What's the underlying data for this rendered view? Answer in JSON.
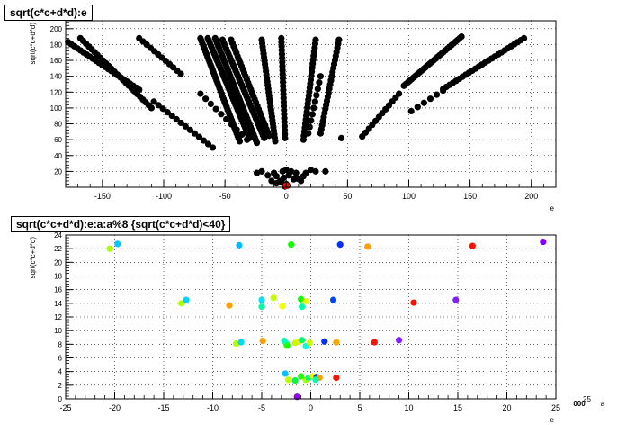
{
  "chart_data": [
    {
      "type": "scatter",
      "title": "sqrt(c*c+d*d):e",
      "xlabel": "e",
      "ylabel": "sqrt(c*c+d*d)",
      "xlim": [
        -180,
        220
      ],
      "ylim": [
        0,
        210
      ],
      "xticks": [
        -150,
        -100,
        -50,
        0,
        50,
        100,
        150,
        200
      ],
      "yticks": [
        20,
        40,
        60,
        80,
        100,
        120,
        140,
        160,
        180,
        200
      ],
      "grid": true,
      "rays": [
        {
          "x0": -178,
          "y0": 183,
          "x1": -120,
          "y1": 123,
          "n": 24
        },
        {
          "x0": -168,
          "y0": 188,
          "x1": -110,
          "y1": 100,
          "n": 26
        },
        {
          "x0": -120,
          "y0": 188,
          "x1": -86,
          "y1": 143,
          "n": 12
        },
        {
          "x0": -108,
          "y0": 108,
          "x1": -60,
          "y1": 50,
          "n": 14
        },
        {
          "x0": -70,
          "y0": 188,
          "x1": -38,
          "y1": 58,
          "n": 40
        },
        {
          "x0": -64,
          "y0": 188,
          "x1": -30,
          "y1": 62,
          "n": 40
        },
        {
          "x0": -58,
          "y0": 188,
          "x1": -24,
          "y1": 56,
          "n": 40
        },
        {
          "x0": -52,
          "y0": 186,
          "x1": -18,
          "y1": 62,
          "n": 36
        },
        {
          "x0": -45,
          "y0": 186,
          "x1": -14,
          "y1": 65,
          "n": 30
        },
        {
          "x0": -20,
          "y0": 186,
          "x1": -9,
          "y1": 58,
          "n": 30
        },
        {
          "x0": -70,
          "y0": 118,
          "x1": -32,
          "y1": 60,
          "n": 10
        },
        {
          "x0": -4,
          "y0": 188,
          "x1": -1,
          "y1": 62,
          "n": 26
        },
        {
          "x0": 24,
          "y0": 186,
          "x1": 14,
          "y1": 60,
          "n": 26
        },
        {
          "x0": 43,
          "y0": 186,
          "x1": 28,
          "y1": 68,
          "n": 24
        },
        {
          "x0": 28,
          "y0": 140,
          "x1": 18,
          "y1": 68,
          "n": 10
        },
        {
          "x0": 143,
          "y0": 190,
          "x1": 96,
          "y1": 128,
          "n": 30
        },
        {
          "x0": 194,
          "y0": 188,
          "x1": 128,
          "y1": 124,
          "n": 26
        },
        {
          "x0": 92,
          "y0": 118,
          "x1": 62,
          "y1": 64,
          "n": 12
        },
        {
          "x0": 128,
          "y0": 122,
          "x1": 102,
          "y1": 96,
          "n": 6
        }
      ],
      "extra_points": [
        [
          45,
          62
        ],
        [
          -8,
          5
        ],
        [
          -5,
          8
        ],
        [
          -2,
          12
        ],
        [
          2,
          15
        ],
        [
          6,
          10
        ],
        [
          -12,
          8
        ],
        [
          12,
          8
        ],
        [
          -20,
          20
        ],
        [
          20,
          22
        ],
        [
          -3,
          20
        ],
        [
          4,
          20
        ],
        [
          8,
          18
        ],
        [
          -15,
          15
        ],
        [
          14,
          14
        ],
        [
          0,
          4
        ],
        [
          1,
          2
        ],
        [
          -1,
          1
        ],
        [
          24,
          20
        ],
        [
          -24,
          18
        ],
        [
          32,
          20
        ],
        [
          -8,
          14
        ],
        [
          9,
          11
        ],
        [
          -10,
          18
        ],
        [
          0,
          22
        ],
        [
          16,
          18
        ],
        [
          -4,
          6
        ]
      ],
      "highlight_point": {
        "x": 0,
        "y": 2,
        "color": "#ff0000"
      }
    },
    {
      "type": "scatter",
      "title": "sqrt(c*c+d*d):e:a:a%8 {sqrt(c*c+d*d)<40}",
      "xlabel": "e",
      "ylabel": "sqrt(c*c+d*d)",
      "zlabel": "a",
      "xlim": [
        -25,
        25
      ],
      "ylim": [
        0,
        24
      ],
      "xticks": [
        -25,
        -20,
        -15,
        -10,
        -5,
        0,
        5,
        10,
        15,
        20,
        25
      ],
      "yticks": [
        0,
        2,
        4,
        6,
        8,
        10,
        12,
        14,
        16,
        18,
        20,
        22,
        24
      ],
      "grid": true,
      "z_axis_labels": [
        "000",
        "25"
      ],
      "points": [
        [
          -20.5,
          22.0,
          "#a8ff00"
        ],
        [
          -19.7,
          22.7,
          "#00c8ff"
        ],
        [
          -7.3,
          22.5,
          "#00b8ff"
        ],
        [
          -2.0,
          22.6,
          "#10ff00"
        ],
        [
          3.0,
          22.6,
          "#0030ff"
        ],
        [
          5.8,
          22.3,
          "#ffa000"
        ],
        [
          16.5,
          22.4,
          "#ff1000"
        ],
        [
          23.7,
          23.0,
          "#8000ff"
        ],
        [
          -13.2,
          14.0,
          "#b0ff00"
        ],
        [
          -12.7,
          14.5,
          "#00d0ff"
        ],
        [
          -8.3,
          13.7,
          "#ffa000"
        ],
        [
          -5.0,
          14.5,
          "#00e0ff"
        ],
        [
          -5.0,
          13.5,
          "#00ffa0"
        ],
        [
          -3.8,
          14.8,
          "#c0ff00"
        ],
        [
          -2.9,
          13.6,
          "#f0ff00"
        ],
        [
          -1.0,
          14.6,
          "#10ff00"
        ],
        [
          -0.9,
          13.5,
          "#00ffa8"
        ],
        [
          -0.5,
          14.3,
          "#e0ff00"
        ],
        [
          2.3,
          14.5,
          "#0040ff"
        ],
        [
          10.5,
          14.1,
          "#ff1000"
        ],
        [
          14.8,
          14.5,
          "#8020ff"
        ],
        [
          -7.6,
          8.1,
          "#b0ff00"
        ],
        [
          -7.1,
          8.3,
          "#00d8ff"
        ],
        [
          -4.9,
          8.5,
          "#ffa000"
        ],
        [
          -2.7,
          8.5,
          "#00ffb0"
        ],
        [
          -2.5,
          8.1,
          "#00ffc8"
        ],
        [
          -2.4,
          7.8,
          "#20ff00"
        ],
        [
          -1.6,
          8.2,
          "#c0ff00"
        ],
        [
          -1.2,
          8.4,
          "#ffe000"
        ],
        [
          -0.9,
          8.6,
          "#00ff60"
        ],
        [
          -0.5,
          7.7,
          "#00ffe0"
        ],
        [
          -0.1,
          8.2,
          "#d0ff00"
        ],
        [
          1.4,
          8.4,
          "#0030ff"
        ],
        [
          2.6,
          8.3,
          "#ffa800"
        ],
        [
          6.5,
          8.3,
          "#ff1000"
        ],
        [
          9.0,
          8.6,
          "#8020ff"
        ],
        [
          -2.6,
          3.7,
          "#00c0ff"
        ],
        [
          -2.3,
          2.8,
          "#c0ff00"
        ],
        [
          -1.0,
          3.3,
          "#20ff00"
        ],
        [
          -0.5,
          2.8,
          "#a0ff00"
        ],
        [
          -0.2,
          3.1,
          "#00ff80"
        ],
        [
          0.2,
          3.3,
          "#e8ff00"
        ],
        [
          0.6,
          3.2,
          "#0030ff"
        ],
        [
          0.9,
          3.1,
          "#ffa000"
        ],
        [
          2.6,
          3.1,
          "#ff1000"
        ],
        [
          -1.6,
          2.7,
          "#00ff40"
        ],
        [
          -1.4,
          0.3,
          "#9000ff"
        ],
        [
          0.5,
          2.8,
          "#00ffb0"
        ]
      ]
    }
  ]
}
